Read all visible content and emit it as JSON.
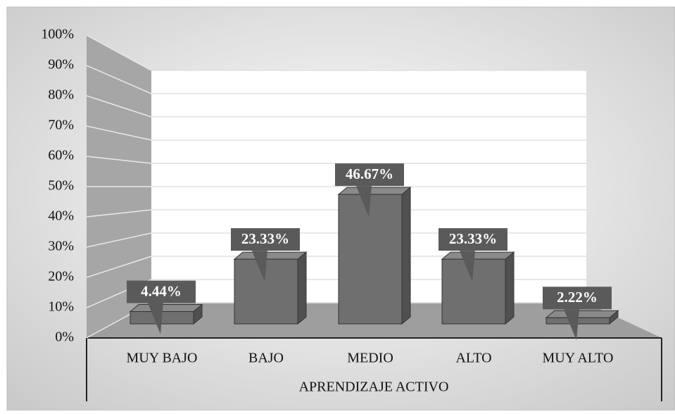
{
  "chart_data": {
    "type": "bar3d",
    "categories": [
      "MUY BAJO",
      "BAJO",
      "MEDIO",
      "ALTO",
      "MUY ALTO"
    ],
    "values": [
      4.44,
      23.33,
      46.67,
      23.33,
      2.22
    ],
    "value_labels": [
      "4.44%",
      "23.33%",
      "46.67%",
      "23.33%",
      "2.22%"
    ],
    "xlabel": "APRENDIZAJE ACTIVO",
    "color": "#6f6f6f",
    "ylim": [
      0,
      100
    ],
    "yticks": [
      {
        "value": 0,
        "label": "0%"
      },
      {
        "value": 10,
        "label": "10%"
      },
      {
        "value": 20,
        "label": "20%"
      },
      {
        "value": 30,
        "label": "30%"
      },
      {
        "value": 40,
        "label": "40%"
      },
      {
        "value": 50,
        "label": "50%"
      },
      {
        "value": 60,
        "label": "60%"
      },
      {
        "value": 70,
        "label": "70%"
      },
      {
        "value": 80,
        "label": "80%"
      },
      {
        "value": 90,
        "label": "90%"
      },
      {
        "value": 100,
        "label": "100%"
      }
    ],
    "grid": true
  }
}
